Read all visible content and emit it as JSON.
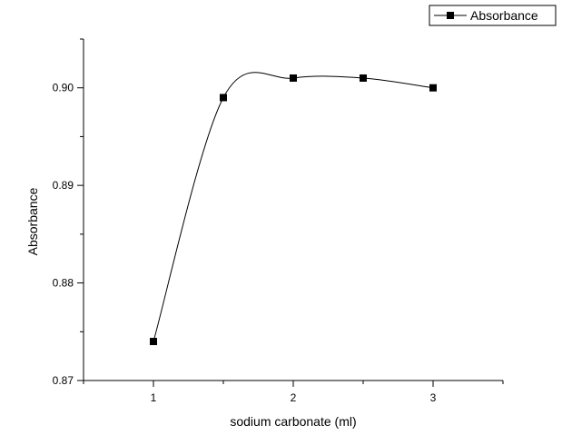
{
  "chart_data": {
    "type": "line",
    "title": "",
    "xlabel": "sodium carbonate (ml)",
    "ylabel": "Absorbance",
    "xlim": [
      0.5,
      3.5
    ],
    "ylim": [
      0.87,
      0.905
    ],
    "xticks": [
      1,
      2,
      3
    ],
    "xtick_labels": [
      "1",
      "2",
      "3"
    ],
    "yticks": [
      0.87,
      0.88,
      0.89,
      0.9
    ],
    "ytick_labels": [
      "0.87",
      "0.88",
      "0.89",
      "0.90"
    ],
    "grid": false,
    "legend_position": "top-right",
    "series": [
      {
        "name": "Absorbance",
        "marker": "square",
        "color": "#000000",
        "x": [
          1,
          1.5,
          2,
          2.5,
          3
        ],
        "y": [
          0.874,
          0.899,
          0.901,
          0.901,
          0.9
        ]
      }
    ]
  }
}
